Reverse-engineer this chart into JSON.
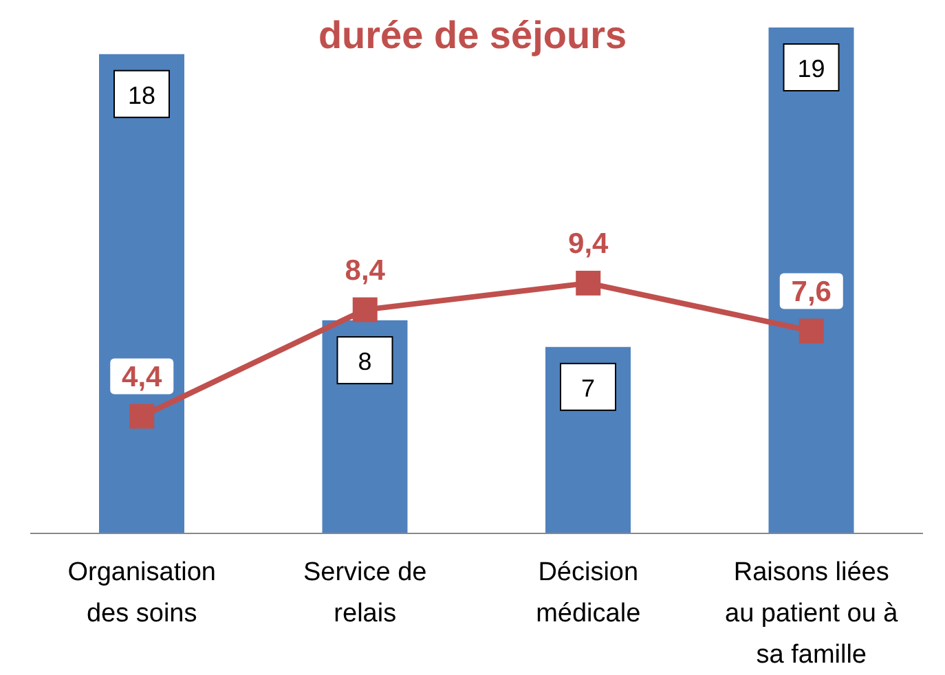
{
  "chart_data": {
    "type": "bar",
    "title": "durée de séjours",
    "categories": [
      "Organisation des soins",
      "Service de relais",
      "Décision médicale",
      "Raisons liées au patient ou à sa famille"
    ],
    "series": [
      {
        "color": "#4f81bd",
        "values": [
          18,
          8,
          7,
          19
        ],
        "value_labels": [
          "18",
          "8",
          "7",
          "19"
        ]
      },
      {
        "type": "line",
        "color": "#c0504d",
        "values": [
          4.4,
          8.4,
          9.4,
          7.6
        ],
        "value_labels": [
          "4,4",
          "8,4",
          "9,4",
          "7,6"
        ],
        "marker": "square"
      }
    ]
  }
}
